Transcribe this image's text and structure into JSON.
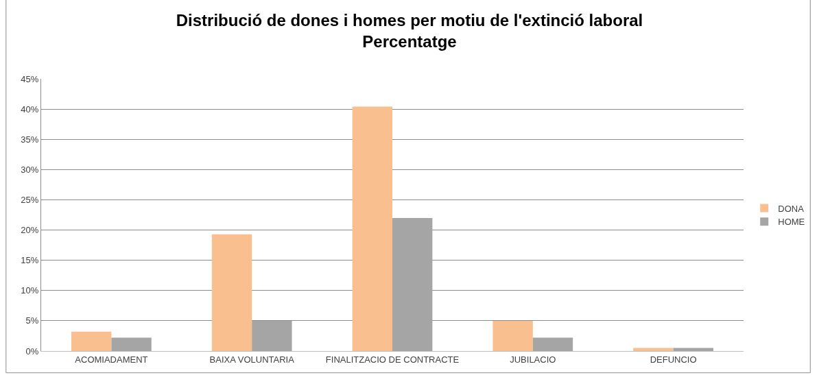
{
  "chart_data": {
    "type": "bar",
    "title": "Distribució de dones i homes per motiu de l'extinció laboral",
    "subtitle": "Percentatge",
    "categories": [
      "ACOMIADAMENT",
      "BAIXA VOLUNTARIA",
      "FINALITZACIO DE CONTRACTE",
      "JUBILACIO",
      "DEFUNCIO"
    ],
    "series": [
      {
        "name": "DONA",
        "color": "#f9bf8f",
        "values": [
          3.2,
          19.3,
          40.4,
          5.0,
          0.5
        ]
      },
      {
        "name": "HOME",
        "color": "#a5a5a5",
        "values": [
          2.2,
          5.0,
          22.0,
          2.2,
          0.5
        ]
      }
    ],
    "ylim": [
      0,
      45
    ],
    "yticks": [
      {
        "value": 0,
        "label": "0%"
      },
      {
        "value": 5,
        "label": "5%"
      },
      {
        "value": 10,
        "label": "10%"
      },
      {
        "value": 15,
        "label": "15%"
      },
      {
        "value": 20,
        "label": "20%"
      },
      {
        "value": 25,
        "label": "25%"
      },
      {
        "value": 30,
        "label": "30%"
      },
      {
        "value": 35,
        "label": "35%"
      },
      {
        "value": 40,
        "label": "40%"
      },
      {
        "value": 45,
        "label": "45%"
      }
    ],
    "grid": "y",
    "legend": "right"
  }
}
